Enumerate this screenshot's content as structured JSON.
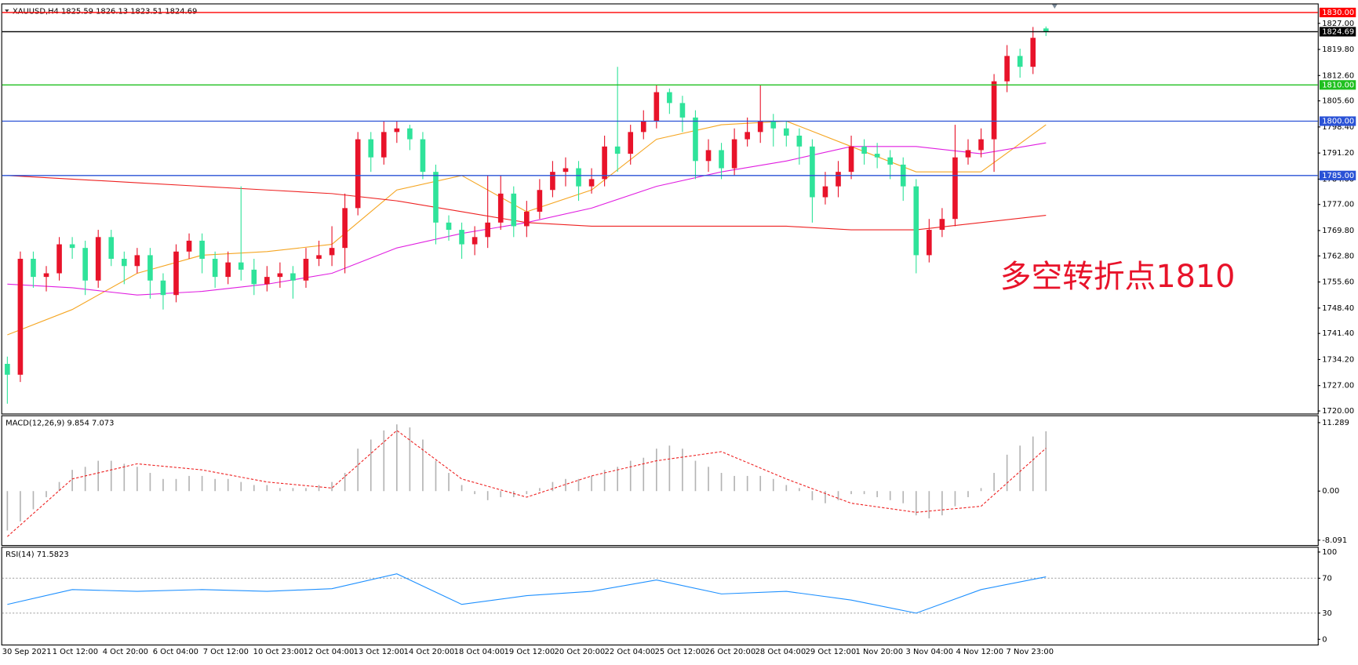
{
  "chart_data": [
    {
      "type": "candlestick",
      "header": "XAUUSD,H4  1825.59 1826.13 1823.51 1824.69",
      "up_color": "#e8132a",
      "down_color": "#2fe39a",
      "open": [
        1733,
        1730,
        1762,
        1757,
        1758,
        1766,
        1765,
        1756,
        1768,
        1762,
        1760,
        1763,
        1756,
        1752,
        1764,
        1767,
        1762,
        1757,
        1761,
        1759,
        1755,
        1757,
        1758,
        1756,
        1762,
        1763,
        1765,
        1776,
        1795,
        1790,
        1797,
        1798,
        1795,
        1786,
        1772,
        1770,
        1766,
        1768,
        1772,
        1780,
        1771,
        1775,
        1781,
        1786,
        1787,
        1782,
        1784,
        1793,
        1791,
        1797,
        1800,
        1808,
        1805,
        1801,
        1789,
        1792,
        1787,
        1795,
        1797,
        1800,
        1798,
        1796,
        1793,
        1779,
        1782,
        1786,
        1793,
        1791,
        1790,
        1788,
        1782,
        1763,
        1770,
        1773,
        1790,
        1792,
        1795,
        1811,
        1818,
        1815,
        1825.59
      ],
      "high": [
        1735,
        1764,
        1764,
        1760,
        1768,
        1768,
        1767,
        1770,
        1770,
        1764,
        1765,
        1765,
        1758,
        1766,
        1769,
        1769,
        1764,
        1764,
        1782,
        1762,
        1760,
        1761,
        1760,
        1765,
        1767,
        1771,
        1780,
        1797,
        1797,
        1800,
        1800,
        1799,
        1797,
        1788,
        1774,
        1772,
        1771,
        1785,
        1785,
        1782,
        1778,
        1784,
        1789,
        1790,
        1789,
        1787,
        1796,
        1815,
        1799,
        1803,
        1810,
        1809,
        1807,
        1803,
        1795,
        1794,
        1798,
        1801,
        1810,
        1802,
        1800,
        1798,
        1795,
        1786,
        1789,
        1796,
        1795,
        1794,
        1792,
        1790,
        1784,
        1773,
        1776,
        1799,
        1795,
        1798,
        1813,
        1821,
        1820,
        1826,
        1826.13
      ],
      "low": [
        1722,
        1728,
        1754,
        1753,
        1756,
        1762,
        1752,
        1754,
        1760,
        1755,
        1758,
        1751,
        1748,
        1750,
        1762,
        1758,
        1754,
        1755,
        1756,
        1752,
        1753,
        1754,
        1751,
        1754,
        1760,
        1760,
        1758,
        1774,
        1786,
        1788,
        1794,
        1792,
        1784,
        1766,
        1767,
        1762,
        1763,
        1765,
        1770,
        1768,
        1768,
        1773,
        1779,
        1782,
        1778,
        1780,
        1782,
        1786,
        1788,
        1795,
        1798,
        1802,
        1797,
        1784,
        1786,
        1784,
        1785,
        1793,
        1794,
        1793,
        1793,
        1788,
        1772,
        1777,
        1779,
        1784,
        1788,
        1787,
        1784,
        1778,
        1758,
        1761,
        1768,
        1771,
        1788,
        1790,
        1786,
        1808,
        1812,
        1813,
        1823.51
      ],
      "close": [
        1730,
        1762,
        1757,
        1758,
        1766,
        1765,
        1756,
        1768,
        1762,
        1760,
        1763,
        1756,
        1752,
        1764,
        1767,
        1762,
        1757,
        1761,
        1759,
        1755,
        1757,
        1758,
        1756,
        1762,
        1763,
        1765,
        1776,
        1795,
        1790,
        1797,
        1798,
        1795,
        1786,
        1772,
        1770,
        1766,
        1768,
        1772,
        1780,
        1771,
        1775,
        1781,
        1786,
        1787,
        1782,
        1784,
        1793,
        1791,
        1797,
        1800,
        1808,
        1805,
        1801,
        1789,
        1792,
        1787,
        1795,
        1797,
        1800,
        1798,
        1796,
        1793,
        1779,
        1782,
        1786,
        1793,
        1791,
        1790,
        1788,
        1782,
        1763,
        1770,
        1773,
        1790,
        1792,
        1795,
        1811,
        1818,
        1815,
        1823,
        1824.69
      ],
      "ylim": [
        1719.28,
        1832.25
      ],
      "yticks": [
        {
          "value": 1827,
          "label": "1827.00"
        },
        {
          "value": 1819.8,
          "label": "1819.80"
        },
        {
          "value": 1812.6,
          "label": "1812.60"
        },
        {
          "value": 1805.6,
          "label": "1805.60"
        },
        {
          "value": 1798.4,
          "label": "1798.40"
        },
        {
          "value": 1791.2,
          "label": "1791.20"
        },
        {
          "value": 1784,
          "label": "1784.00"
        },
        {
          "value": 1777,
          "label": "1777.00"
        },
        {
          "value": 1769.8,
          "label": "1769.80"
        },
        {
          "value": 1762.8,
          "label": "1762.80"
        },
        {
          "value": 1755.6,
          "label": "1755.60"
        },
        {
          "value": 1748.4,
          "label": "1748.40"
        },
        {
          "value": 1741.4,
          "label": "1741.40"
        },
        {
          "value": 1734.2,
          "label": "1734.20"
        },
        {
          "value": 1727,
          "label": "1727.00"
        },
        {
          "value": 1720,
          "label": "1720.00"
        }
      ],
      "levels": [
        {
          "value": 1830,
          "label": "1830.00",
          "color": "#ff0000"
        },
        {
          "value": 1824.69,
          "label": "1824.69",
          "color": "#000000"
        },
        {
          "value": 1810,
          "label": "1810.00",
          "color": "#1fc01f"
        },
        {
          "value": 1800,
          "label": "1800.00",
          "color": "#2a52d6"
        },
        {
          "value": 1785,
          "label": "1785.00",
          "color": "#2a52d6"
        }
      ],
      "moving_averages": [
        {
          "color": "#f5a623",
          "x": [
            0,
            5,
            10,
            15,
            20,
            25,
            30,
            35,
            40,
            45,
            50,
            55,
            60,
            65,
            70,
            75,
            80
          ],
          "values": [
            1741,
            1748,
            1758,
            1763,
            1764,
            1766,
            1781,
            1785,
            1775,
            1781,
            1795,
            1799,
            1800,
            1793,
            1786,
            1786,
            1799
          ]
        },
        {
          "color": "#e01ee0",
          "x": [
            0,
            5,
            10,
            15,
            20,
            25,
            30,
            35,
            40,
            45,
            50,
            55,
            60,
            65,
            70,
            75,
            80
          ],
          "values": [
            1755,
            1754,
            1752,
            1753,
            1755,
            1758,
            1765,
            1769,
            1772,
            1776,
            1782,
            1786,
            1789,
            1793,
            1793,
            1791,
            1794
          ]
        },
        {
          "color": "#ee2222",
          "x": [
            0,
            5,
            10,
            15,
            20,
            25,
            30,
            35,
            40,
            45,
            50,
            55,
            60,
            65,
            70,
            75,
            80
          ],
          "values": [
            1785,
            1784,
            1783,
            1782,
            1781,
            1780,
            1778,
            1775,
            1772,
            1771,
            1771,
            1771,
            1771,
            1770,
            1770,
            1772,
            1774
          ]
        }
      ],
      "annotation": {
        "text": "多空转折点1810",
        "color": "#e8132a"
      }
    },
    {
      "type": "macd",
      "header": "MACD(12,26,9) 9.854 7.073",
      "ylim": [
        -8.9,
        12.5
      ],
      "yticks": [
        11.289,
        {
          "value": 0,
          "label": "0.00"
        },
        -8.091
      ],
      "histogram": {
        "color": "#b4b4b4",
        "values": [
          -6.5,
          -5,
          -3,
          -1,
          1.5,
          3.5,
          4,
          5,
          5,
          4.5,
          4,
          3,
          2,
          2,
          2.5,
          2.5,
          2,
          2,
          1.5,
          1,
          1,
          0.5,
          0.5,
          0.5,
          1,
          1.5,
          3,
          7,
          8.5,
          10,
          11,
          10.5,
          8.5,
          5,
          3,
          1,
          -0.5,
          -1.5,
          -1,
          -1,
          -0.5,
          0.5,
          1.5,
          2,
          2,
          2.5,
          3.5,
          4,
          5,
          5.5,
          7,
          7.5,
          7,
          5,
          4,
          3,
          2.5,
          2.5,
          2.5,
          2,
          1,
          0.5,
          -1.5,
          -2,
          -1.5,
          -0.5,
          -0.5,
          -1,
          -1.5,
          -2,
          -4,
          -4.5,
          -4,
          -2.5,
          -1,
          0.5,
          3,
          6,
          7.5,
          9,
          9.854
        ]
      },
      "signal": {
        "color": "#ee2222",
        "x": [
          0,
          5,
          10,
          15,
          20,
          25,
          30,
          35,
          40,
          45,
          50,
          55,
          60,
          65,
          70,
          75,
          80
        ],
        "values": [
          -7.5,
          2,
          4.5,
          3.5,
          1.5,
          0.5,
          10,
          2,
          -1,
          2.5,
          5,
          6.5,
          2,
          -2,
          -3.5,
          -2.5,
          7.073
        ]
      }
    },
    {
      "type": "line",
      "header": "RSI(14) 71.5823",
      "ylim": [
        -6,
        105
      ],
      "yticks": [
        0,
        30,
        70,
        100
      ],
      "levels": [
        70,
        30
      ],
      "series": [
        {
          "color": "#1e90ff",
          "x": [
            0,
            5,
            10,
            15,
            20,
            25,
            30,
            35,
            40,
            45,
            50,
            55,
            60,
            65,
            70,
            75,
            80
          ],
          "values": [
            40,
            57,
            55,
            57,
            55,
            58,
            75,
            40,
            50,
            55,
            68,
            52,
            55,
            45,
            30,
            57,
            71.5823
          ]
        }
      ],
      "time_labels": [
        "30 Sep 2021",
        "1 Oct 12:00",
        "4 Oct 20:00",
        "6 Oct 04:00",
        "7 Oct 12:00",
        "10 Oct 23:00",
        "12 Oct 04:00",
        "13 Oct 12:00",
        "14 Oct 20:00",
        "18 Oct 04:00",
        "19 Oct 12:00",
        "20 Oct 20:00",
        "22 Oct 04:00",
        "25 Oct 12:00",
        "26 Oct 20:00",
        "28 Oct 04:00",
        "29 Oct 12:00",
        "1 Nov 20:00",
        "3 Nov 04:00",
        "4 Nov 12:00",
        "7 Nov 23:00"
      ]
    }
  ]
}
